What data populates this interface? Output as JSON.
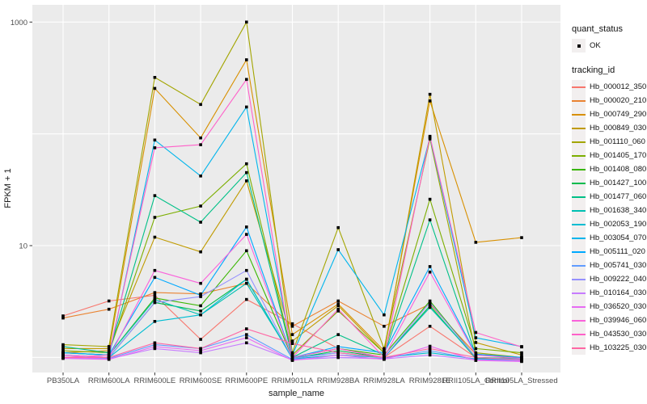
{
  "chart_data": {
    "type": "line",
    "title": "",
    "xlabel": "sample_name",
    "ylabel": "FPKM + 1",
    "y_scale": "log10",
    "ylim": [
      0.73,
      1430
    ],
    "y_ticks": [
      {
        "value": 10,
        "label": "10"
      },
      {
        "value": 1000,
        "label": "1000"
      }
    ],
    "y_gridlines": [
      1,
      10,
      100,
      1000
    ],
    "panel_bg": "#EBEBEB",
    "gridline_color": "#FFFFFF",
    "tick_color": "#333333",
    "axis_text_color": "#4D4D4D",
    "point_color": "#000000",
    "legend_position": "right",
    "x_categories": [
      "PB350LA",
      "RRIM600LA",
      "RRIM600LE",
      "RRIM600SE",
      "RRIM600PE",
      "RRIM901LA",
      "RRIM928BA",
      "RRIM928LA",
      "RRIM928LE",
      "RRII105LA_Control",
      "RRII105LA_Stressed"
    ],
    "series": [
      {
        "name": "Hb_000012_350",
        "color": "#F8766D",
        "values": [
          2.35,
          3.2,
          3.6,
          1.45,
          3.3,
          2.0,
          1.2,
          1.0,
          1.9,
          1.0,
          0.95
        ]
      },
      {
        "name": "Hb_000020_210",
        "color": "#EA8331",
        "values": [
          2.25,
          2.7,
          3.8,
          3.7,
          4.6,
          1.9,
          3.2,
          1.9,
          3.0,
          1.07,
          1.0
        ]
      },
      {
        "name": "Hb_000749_290",
        "color": "#D89000",
        "values": [
          1.1,
          1.15,
          255,
          92,
          460,
          1.6,
          3.0,
          1.15,
          197,
          10.7,
          11.8
        ]
      },
      {
        "name": "Hb_000849_030",
        "color": "#C09B00",
        "values": [
          1.2,
          1.2,
          11.9,
          8.8,
          38,
          1.4,
          2.9,
          1.1,
          226,
          1.36,
          1.05
        ]
      },
      {
        "name": "Hb_001110_060",
        "color": "#A3A500",
        "values": [
          1.3,
          1.25,
          320,
          183,
          1000,
          1.1,
          14.5,
          1.2,
          90,
          1.1,
          1.0
        ]
      },
      {
        "name": "Hb_001405_170",
        "color": "#7CAE00",
        "values": [
          1.15,
          1.1,
          17.9,
          22.6,
          54,
          1.05,
          2.6,
          1.1,
          26,
          1.2,
          1.1
        ]
      },
      {
        "name": "Hb_001408_080",
        "color": "#39B600",
        "values": [
          1.1,
          1.05,
          3.4,
          2.9,
          9.0,
          1.0,
          1.2,
          1.05,
          3.2,
          1.0,
          0.98
        ]
      },
      {
        "name": "Hb_001427_100",
        "color": "#00BB4E",
        "values": [
          1.05,
          1.0,
          3.1,
          2.6,
          5.0,
          0.98,
          1.15,
          1.0,
          2.9,
          0.98,
          0.96
        ]
      },
      {
        "name": "Hb_001477_060",
        "color": "#00C087",
        "values": [
          1.25,
          1.1,
          28,
          16.2,
          45,
          1.0,
          1.6,
          1.05,
          17,
          1.05,
          1.0
        ]
      },
      {
        "name": "Hb_001638_340",
        "color": "#00C0B2",
        "values": [
          1.1,
          1.05,
          3.3,
          2.4,
          4.6,
          1.0,
          1.1,
          1.0,
          2.8,
          1.0,
          0.97
        ]
      },
      {
        "name": "Hb_002053_190",
        "color": "#00BDD2",
        "values": [
          1.0,
          1.0,
          2.1,
          2.4,
          5.0,
          0.97,
          1.05,
          1.0,
          1.1,
          0.97,
          0.95
        ]
      },
      {
        "name": "Hb_003054_070",
        "color": "#00B5EC",
        "values": [
          1.05,
          1.0,
          88,
          42,
          174,
          1.05,
          9.2,
          2.4,
          93,
          1.5,
          1.25
        ]
      },
      {
        "name": "Hb_005111_020",
        "color": "#00A9FF",
        "values": [
          1.1,
          1.05,
          5.2,
          3.6,
          14.7,
          1.0,
          1.25,
          1.1,
          6.5,
          1.07,
          1.0
        ]
      },
      {
        "name": "Hb_005741_030",
        "color": "#619CFF",
        "values": [
          1.0,
          0.98,
          1.3,
          1.2,
          1.6,
          0.96,
          1.0,
          0.98,
          1.15,
          0.96,
          0.94
        ]
      },
      {
        "name": "Hb_009222_040",
        "color": "#9590FF",
        "values": [
          1.05,
          1.0,
          3.1,
          3.5,
          6.0,
          0.98,
          1.1,
          1.0,
          3.1,
          1.0,
          0.96
        ]
      },
      {
        "name": "Hb_010164_030",
        "color": "#C77CFF",
        "values": [
          1.0,
          0.97,
          1.2,
          1.1,
          1.35,
          0.95,
          1.0,
          0.97,
          1.05,
          0.95,
          0.93
        ]
      },
      {
        "name": "Hb_036520_030",
        "color": "#E76BF3",
        "values": [
          0.98,
          0.96,
          1.25,
          1.15,
          1.5,
          0.94,
          1.05,
          0.96,
          1.26,
          0.94,
          0.92
        ]
      },
      {
        "name": "Hb_039946_060",
        "color": "#FA62DB",
        "values": [
          1.05,
          1.0,
          6.0,
          4.6,
          12.6,
          1.0,
          1.2,
          1.0,
          5.8,
          1.05,
          0.98
        ]
      },
      {
        "name": "Hb_043530_030",
        "color": "#FF61C9",
        "values": [
          1.0,
          1.05,
          75,
          80,
          307,
          1.0,
          2.7,
          1.0,
          95,
          1.67,
          1.24
        ]
      },
      {
        "name": "Hb_103225_030",
        "color": "#FF67A4",
        "values": [
          1.0,
          1.0,
          1.35,
          1.2,
          1.8,
          1.33,
          1.1,
          1.0,
          1.2,
          1.0,
          0.95
        ]
      }
    ],
    "legend": {
      "quant_status": {
        "title": "quant_status",
        "items": [
          {
            "label": "OK",
            "symbol": "point"
          }
        ]
      },
      "tracking_id": {
        "title": "tracking_id"
      }
    }
  }
}
